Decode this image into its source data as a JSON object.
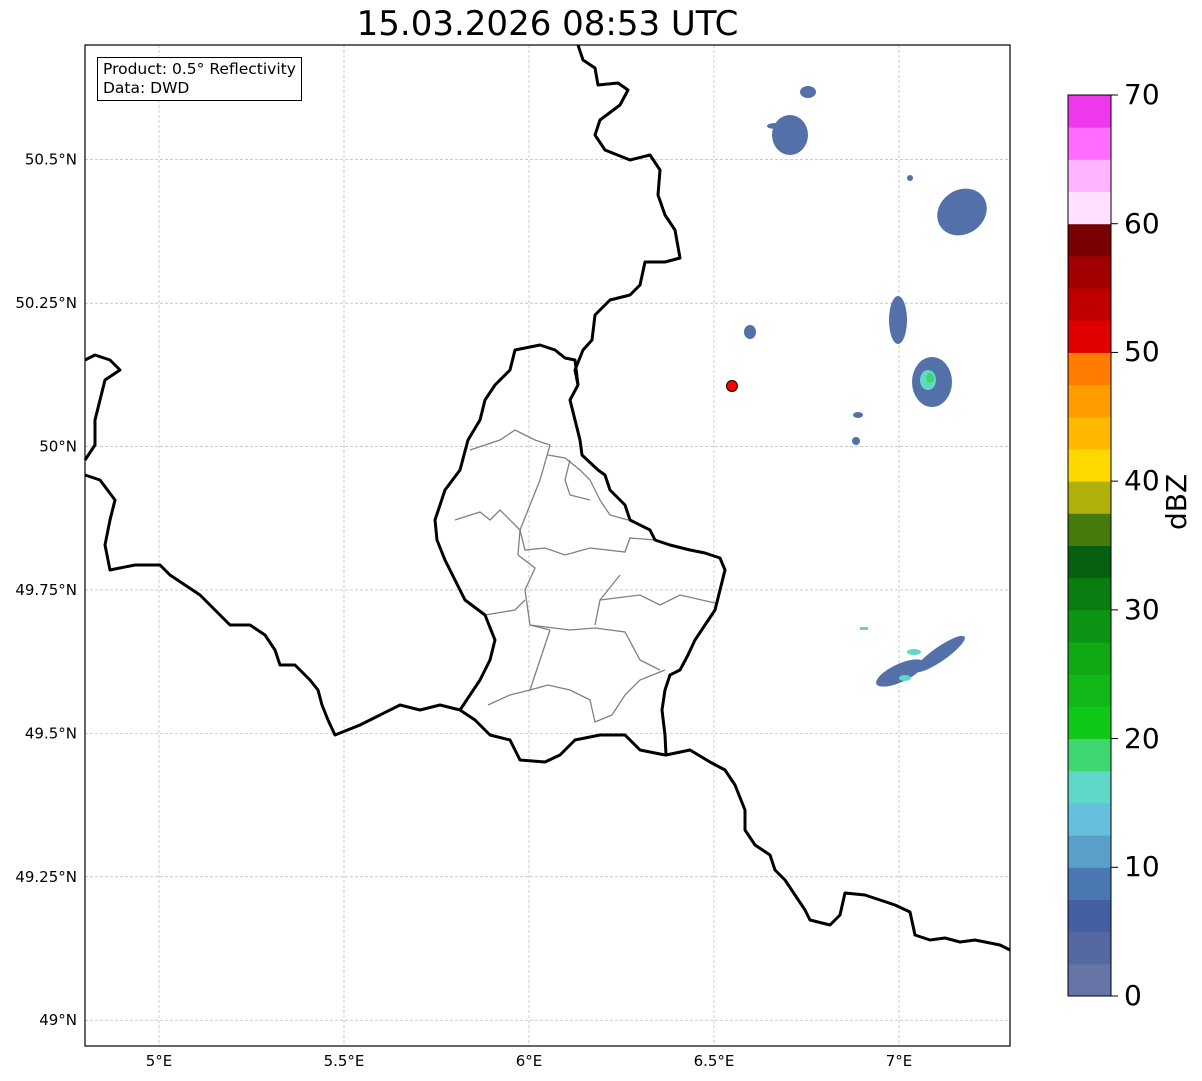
{
  "title": "15.03.2026 08:53 UTC",
  "info_box": {
    "line1": "Product: 0.5° Reflectivity",
    "line2": "Data: DWD"
  },
  "map": {
    "lon_range": [
      4.8,
      7.3
    ],
    "lat_range": [
      48.955,
      50.7
    ],
    "x_ticks": [
      {
        "value": 5,
        "label": "5°E"
      },
      {
        "value": 5.5,
        "label": "5.5°E"
      },
      {
        "value": 6,
        "label": "6°E"
      },
      {
        "value": 6.5,
        "label": "6.5°E"
      },
      {
        "value": 7,
        "label": "7°E"
      }
    ],
    "y_ticks": [
      {
        "value": 50.5,
        "label": "50.5°N"
      },
      {
        "value": 50.25,
        "label": "50.25°N"
      },
      {
        "value": 50,
        "label": "50°N"
      },
      {
        "value": 49.75,
        "label": "49.75°N"
      },
      {
        "value": 49.5,
        "label": "49.5°N"
      },
      {
        "value": 49.25,
        "label": "49.25°N"
      },
      {
        "value": 49,
        "label": "49°N"
      }
    ],
    "radar_site": {
      "lon": 6.547,
      "lat": 50.11,
      "color": "#ff0000"
    }
  },
  "colorbar": {
    "label": "dBZ",
    "min": 0,
    "max": 70,
    "step": 2.5,
    "ticks": [
      "0",
      "10",
      "20",
      "30",
      "40",
      "50",
      "60",
      "70"
    ],
    "colors": [
      "#6674a6",
      "#5568a0",
      "#4460a2",
      "#4b78b0",
      "#58a0c8",
      "#66c0dc",
      "#60d8c8",
      "#3fd870",
      "#10c818",
      "#10b818",
      "#10a814",
      "#0c9414",
      "#0a7c10",
      "#066010",
      "#467a0c",
      "#b0b00a",
      "#ffd800",
      "#ffb800",
      "#ff9c00",
      "#ff7c00",
      "#e00000",
      "#c00000",
      "#a00000",
      "#780000",
      "#ffe0ff",
      "#ffb4ff",
      "#ff6cff",
      "#ee38ee"
    ]
  }
}
